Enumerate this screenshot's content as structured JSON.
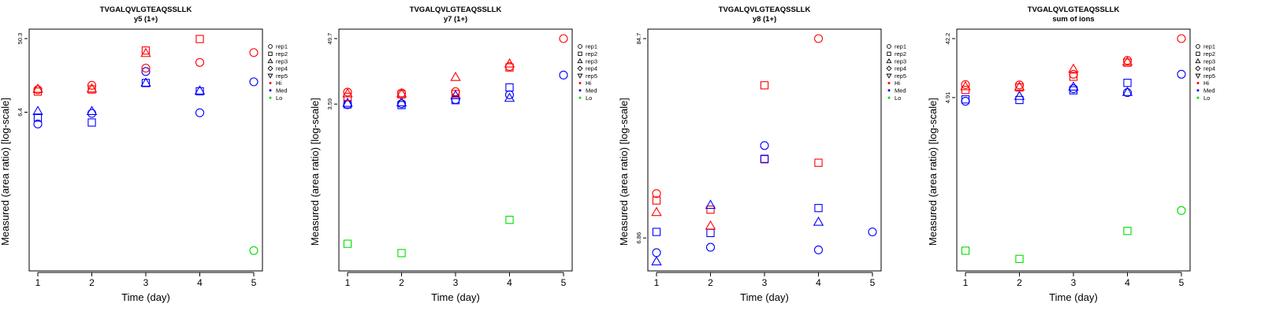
{
  "colors": {
    "Hi": "#ff0000",
    "Med": "#0000ff",
    "Lo": "#00dd00"
  },
  "legend": {
    "entries": [
      {
        "label": "rep1",
        "type": "shape",
        "shape": "circle"
      },
      {
        "label": "rep2",
        "type": "shape",
        "shape": "square"
      },
      {
        "label": "rep3",
        "type": "shape",
        "shape": "triangle-up"
      },
      {
        "label": "rep4",
        "type": "shape",
        "shape": "diamond"
      },
      {
        "label": "rep5",
        "type": "shape",
        "shape": "triangle-down"
      },
      {
        "label": "Hi",
        "type": "color",
        "color": "#ff0000"
      },
      {
        "label": "Med",
        "type": "color",
        "color": "#0000ff"
      },
      {
        "label": "Lo",
        "type": "color",
        "color": "#00dd00"
      }
    ]
  },
  "chart_data": [
    {
      "type": "scatter",
      "title": "TVGALQVLGTEAQSSLLK",
      "subtitle": "y5 (1+)",
      "xlabel": "Time (day)",
      "ylabel": "Measured (area ratio) [log-scale]",
      "x_ticks": [
        "1",
        "2",
        "3",
        "4",
        "5"
      ],
      "xlim": [
        1,
        5
      ],
      "y_scale": "log",
      "y_ticks": [
        {
          "value": 6.4,
          "label": "6.4"
        },
        {
          "value": 50.3,
          "label": "50.3"
        }
      ],
      "ylim": [
        0.098,
        50.3
      ],
      "legend_position": "right",
      "points": [
        {
          "x": 1,
          "y": 4.6,
          "shape": "circle",
          "group": "Med"
        },
        {
          "x": 1,
          "y": 5.5,
          "shape": "square",
          "group": "Med"
        },
        {
          "x": 1,
          "y": 6.6,
          "shape": "triangle-up",
          "group": "Med"
        },
        {
          "x": 1,
          "y": 11.4,
          "shape": "square",
          "group": "Hi"
        },
        {
          "x": 1,
          "y": 12.0,
          "shape": "circle",
          "group": "Hi"
        },
        {
          "x": 1,
          "y": 12.3,
          "shape": "triangle-up",
          "group": "Hi"
        },
        {
          "x": 2,
          "y": 4.8,
          "shape": "square",
          "group": "Med"
        },
        {
          "x": 2,
          "y": 6.2,
          "shape": "circle",
          "group": "Med"
        },
        {
          "x": 2,
          "y": 6.6,
          "shape": "triangle-up",
          "group": "Med"
        },
        {
          "x": 2,
          "y": 12.1,
          "shape": "square",
          "group": "Hi"
        },
        {
          "x": 2,
          "y": 12.4,
          "shape": "triangle-up",
          "group": "Hi"
        },
        {
          "x": 2,
          "y": 13.6,
          "shape": "circle",
          "group": "Hi"
        },
        {
          "x": 3,
          "y": 14.5,
          "shape": "square",
          "group": "Med"
        },
        {
          "x": 3,
          "y": 14.6,
          "shape": "triangle-up",
          "group": "Med"
        },
        {
          "x": 3,
          "y": 20.0,
          "shape": "circle",
          "group": "Med"
        },
        {
          "x": 3,
          "y": 22.0,
          "shape": "circle",
          "group": "Hi"
        },
        {
          "x": 3,
          "y": 33.5,
          "shape": "triangle-up",
          "group": "Hi"
        },
        {
          "x": 3,
          "y": 36.0,
          "shape": "square",
          "group": "Hi"
        },
        {
          "x": 4,
          "y": 6.3,
          "shape": "circle",
          "group": "Med"
        },
        {
          "x": 4,
          "y": 11.5,
          "shape": "square",
          "group": "Med"
        },
        {
          "x": 4,
          "y": 11.7,
          "shape": "triangle-up",
          "group": "Med"
        },
        {
          "x": 4,
          "y": 25.8,
          "shape": "circle",
          "group": "Hi"
        },
        {
          "x": 4,
          "y": 49.7,
          "shape": "square",
          "group": "Hi"
        },
        {
          "x": 5,
          "y": 15.0,
          "shape": "circle",
          "group": "Med"
        },
        {
          "x": 5,
          "y": 34.0,
          "shape": "circle",
          "group": "Hi"
        },
        {
          "x": 5,
          "y": 0.133,
          "shape": "circle",
          "group": "Lo"
        }
      ]
    },
    {
      "type": "scatter",
      "title": "TVGALQVLGTEAQSSLLK",
      "subtitle": "y7 (1+)",
      "xlabel": "Time (day)",
      "ylabel": "Measured (area ratio) [log-scale]",
      "x_ticks": [
        "1",
        "2",
        "3",
        "4",
        "5"
      ],
      "xlim": [
        1,
        5
      ],
      "y_scale": "log",
      "y_ticks": [
        {
          "value": 3.59,
          "label": "3.59"
        },
        {
          "value": 49.7,
          "label": "49.7"
        }
      ],
      "ylim": [
        0.0065,
        49.7
      ],
      "legend_position": "right",
      "points": [
        {
          "x": 1,
          "y": 3.5,
          "shape": "circle",
          "group": "Med"
        },
        {
          "x": 1,
          "y": 3.55,
          "shape": "square",
          "group": "Med"
        },
        {
          "x": 1,
          "y": 3.75,
          "shape": "triangle-up",
          "group": "Med"
        },
        {
          "x": 1,
          "y": 4.8,
          "shape": "square",
          "group": "Hi"
        },
        {
          "x": 1,
          "y": 5.5,
          "shape": "triangle-up",
          "group": "Hi"
        },
        {
          "x": 1,
          "y": 5.8,
          "shape": "circle",
          "group": "Hi"
        },
        {
          "x": 1,
          "y": 0.0132,
          "shape": "square",
          "group": "Lo"
        },
        {
          "x": 2,
          "y": 3.45,
          "shape": "square",
          "group": "Med"
        },
        {
          "x": 2,
          "y": 3.65,
          "shape": "circle",
          "group": "Med"
        },
        {
          "x": 2,
          "y": 3.85,
          "shape": "triangle-up",
          "group": "Med"
        },
        {
          "x": 2,
          "y": 5.3,
          "shape": "square",
          "group": "Hi"
        },
        {
          "x": 2,
          "y": 5.5,
          "shape": "triangle-up",
          "group": "Hi"
        },
        {
          "x": 2,
          "y": 5.6,
          "shape": "circle",
          "group": "Hi"
        },
        {
          "x": 2,
          "y": 0.0091,
          "shape": "square",
          "group": "Lo"
        },
        {
          "x": 3,
          "y": 4.2,
          "shape": "square",
          "group": "Med"
        },
        {
          "x": 3,
          "y": 4.3,
          "shape": "circle",
          "group": "Med"
        },
        {
          "x": 3,
          "y": 5.1,
          "shape": "triangle-up",
          "group": "Med"
        },
        {
          "x": 3,
          "y": 5.4,
          "shape": "square",
          "group": "Hi"
        },
        {
          "x": 3,
          "y": 5.9,
          "shape": "circle",
          "group": "Hi"
        },
        {
          "x": 3,
          "y": 10.6,
          "shape": "triangle-up",
          "group": "Hi"
        },
        {
          "x": 4,
          "y": 4.6,
          "shape": "triangle-up",
          "group": "Med"
        },
        {
          "x": 4,
          "y": 5.2,
          "shape": "circle",
          "group": "Med"
        },
        {
          "x": 4,
          "y": 7.0,
          "shape": "square",
          "group": "Med"
        },
        {
          "x": 4,
          "y": 15.6,
          "shape": "square",
          "group": "Hi"
        },
        {
          "x": 4,
          "y": 16.2,
          "shape": "circle",
          "group": "Hi"
        },
        {
          "x": 4,
          "y": 18.2,
          "shape": "triangle-up",
          "group": "Hi"
        },
        {
          "x": 4,
          "y": 0.0345,
          "shape": "square",
          "group": "Lo"
        },
        {
          "x": 5,
          "y": 11.5,
          "shape": "circle",
          "group": "Med"
        },
        {
          "x": 5,
          "y": 49.7,
          "shape": "circle",
          "group": "Hi"
        }
      ]
    },
    {
      "type": "scatter",
      "title": "TVGALQVLGTEAQSSLLK",
      "subtitle": "y8 (1+)",
      "xlabel": "Time (day)",
      "ylabel": "Measured (area ratio) [log-scale]",
      "x_ticks": [
        "1",
        "2",
        "3",
        "4",
        "5"
      ],
      "xlim": [
        1,
        5
      ],
      "y_scale": "log",
      "y_ticks": [
        {
          "value": 6.86,
          "label": "6.86"
        },
        {
          "value": 84.7,
          "label": "84.7"
        }
      ],
      "ylim": [
        5.1,
        84.7
      ],
      "legend_position": "right",
      "points": [
        {
          "x": 1,
          "y": 5.1,
          "shape": "triangle-up",
          "group": "Med"
        },
        {
          "x": 1,
          "y": 5.7,
          "shape": "circle",
          "group": "Med"
        },
        {
          "x": 1,
          "y": 7.4,
          "shape": "square",
          "group": "Med"
        },
        {
          "x": 1,
          "y": 9.5,
          "shape": "triangle-up",
          "group": "Hi"
        },
        {
          "x": 1,
          "y": 11.0,
          "shape": "square",
          "group": "Hi"
        },
        {
          "x": 1,
          "y": 12.0,
          "shape": "circle",
          "group": "Hi"
        },
        {
          "x": 2,
          "y": 6.1,
          "shape": "circle",
          "group": "Med"
        },
        {
          "x": 2,
          "y": 7.3,
          "shape": "square",
          "group": "Med"
        },
        {
          "x": 2,
          "y": 8.0,
          "shape": "triangle-up",
          "group": "Hi"
        },
        {
          "x": 2,
          "y": 9.8,
          "shape": "square",
          "group": "Hi"
        },
        {
          "x": 2,
          "y": 10.4,
          "shape": "triangle-up",
          "group": "Med"
        },
        {
          "x": 3,
          "y": 18.5,
          "shape": "square",
          "group": "Hi"
        },
        {
          "x": 3,
          "y": 18.6,
          "shape": "square",
          "group": "Med"
        },
        {
          "x": 3,
          "y": 22.0,
          "shape": "circle",
          "group": "Med"
        },
        {
          "x": 3,
          "y": 47.0,
          "shape": "square",
          "group": "Hi"
        },
        {
          "x": 4,
          "y": 5.9,
          "shape": "circle",
          "group": "Med"
        },
        {
          "x": 4,
          "y": 8.4,
          "shape": "triangle-up",
          "group": "Med"
        },
        {
          "x": 4,
          "y": 10.0,
          "shape": "square",
          "group": "Med"
        },
        {
          "x": 4,
          "y": 17.7,
          "shape": "square",
          "group": "Hi"
        },
        {
          "x": 4,
          "y": 84.7,
          "shape": "circle",
          "group": "Hi"
        },
        {
          "x": 5,
          "y": 7.4,
          "shape": "circle",
          "group": "Med"
        }
      ]
    },
    {
      "type": "scatter",
      "title": "TVGALQVLGTEAQSSLLK",
      "subtitle": "sum of ions",
      "xlabel": "Time (day)",
      "ylabel": "Measured (area ratio) [log-scale]",
      "x_ticks": [
        "1",
        "2",
        "3",
        "4",
        "5"
      ],
      "xlim": [
        1,
        5
      ],
      "y_scale": "log",
      "y_ticks": [
        {
          "value": 4.91,
          "label": "4.91"
        },
        {
          "value": 42.2,
          "label": "42.2"
        }
      ],
      "ylim": [
        0.0125,
        42.2
      ],
      "legend_position": "right",
      "points": [
        {
          "x": 1,
          "y": 4.3,
          "shape": "circle",
          "group": "Med"
        },
        {
          "x": 1,
          "y": 4.6,
          "shape": "square",
          "group": "Med"
        },
        {
          "x": 1,
          "y": 6.5,
          "shape": "square",
          "group": "Hi"
        },
        {
          "x": 1,
          "y": 7.4,
          "shape": "triangle-up",
          "group": "Hi"
        },
        {
          "x": 1,
          "y": 7.9,
          "shape": "circle",
          "group": "Hi"
        },
        {
          "x": 1,
          "y": 0.0185,
          "shape": "square",
          "group": "Lo"
        },
        {
          "x": 2,
          "y": 4.5,
          "shape": "square",
          "group": "Med"
        },
        {
          "x": 2,
          "y": 5.2,
          "shape": "triangle-up",
          "group": "Med"
        },
        {
          "x": 2,
          "y": 7.1,
          "shape": "square",
          "group": "Hi"
        },
        {
          "x": 2,
          "y": 7.3,
          "shape": "triangle-up",
          "group": "Hi"
        },
        {
          "x": 2,
          "y": 7.8,
          "shape": "circle",
          "group": "Hi"
        },
        {
          "x": 2,
          "y": 0.0137,
          "shape": "square",
          "group": "Lo"
        },
        {
          "x": 3,
          "y": 6.4,
          "shape": "square",
          "group": "Med"
        },
        {
          "x": 3,
          "y": 6.8,
          "shape": "circle",
          "group": "Med"
        },
        {
          "x": 3,
          "y": 7.3,
          "shape": "triangle-up",
          "group": "Med"
        },
        {
          "x": 3,
          "y": 10.5,
          "shape": "square",
          "group": "Hi"
        },
        {
          "x": 3,
          "y": 11.5,
          "shape": "circle",
          "group": "Hi"
        },
        {
          "x": 3,
          "y": 14.0,
          "shape": "triangle-up",
          "group": "Hi"
        },
        {
          "x": 4,
          "y": 5.9,
          "shape": "circle",
          "group": "Med"
        },
        {
          "x": 4,
          "y": 6.0,
          "shape": "triangle-up",
          "group": "Med"
        },
        {
          "x": 4,
          "y": 8.4,
          "shape": "square",
          "group": "Med"
        },
        {
          "x": 4,
          "y": 17.5,
          "shape": "square",
          "group": "Hi"
        },
        {
          "x": 4,
          "y": 18.2,
          "shape": "triangle-up",
          "group": "Hi"
        },
        {
          "x": 4,
          "y": 19.1,
          "shape": "circle",
          "group": "Hi"
        },
        {
          "x": 4,
          "y": 0.038,
          "shape": "square",
          "group": "Lo"
        },
        {
          "x": 5,
          "y": 11.5,
          "shape": "circle",
          "group": "Med"
        },
        {
          "x": 5,
          "y": 42.2,
          "shape": "circle",
          "group": "Hi"
        },
        {
          "x": 5,
          "y": 0.08,
          "shape": "circle",
          "group": "Lo"
        }
      ]
    }
  ]
}
